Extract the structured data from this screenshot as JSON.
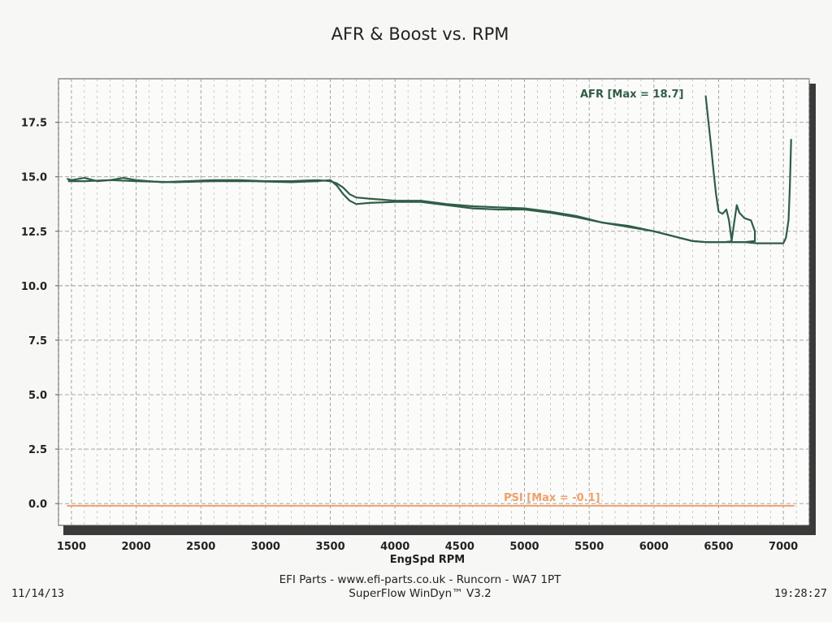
{
  "page": {
    "footer_line1": "EFI Parts - www.efi-parts.co.uk - Runcorn - WA7 1PT",
    "footer_line2": "SuperFlow WinDyn™ V3.2",
    "date": "11/14/13",
    "time": "19:28:27"
  },
  "colors": {
    "afr": "#2f5e45",
    "psi": "#f0a069",
    "grid": "#9a9a9a",
    "background": "#f7f7f5"
  },
  "chart_data": {
    "type": "line",
    "title": "AFR & Boost vs. RPM",
    "xlabel": "EngSpd RPM",
    "ylabel": "",
    "xlim": [
      1400,
      7200
    ],
    "ylim": [
      -1,
      19.5
    ],
    "x_ticks": [
      1500,
      2000,
      2500,
      3000,
      3500,
      4000,
      4500,
      5000,
      5500,
      6000,
      6500,
      7000
    ],
    "x_tick_labels": [
      "1500",
      "2000",
      "2500",
      "3000",
      "3500",
      "4000",
      "4500",
      "5000",
      "5500",
      "6000",
      "6500",
      "7000"
    ],
    "y_ticks": [
      0,
      2.5,
      5,
      7.5,
      10,
      12.5,
      15,
      17.5
    ],
    "y_tick_labels": [
      "0.0",
      "2.5",
      "5.0",
      "7.5",
      "10.0",
      "12.5",
      "15.0",
      "17.5"
    ],
    "grid": true,
    "series": [
      {
        "name": "AFR",
        "label": "AFR   [Max = 18.7]",
        "color": "#2f5e45",
        "x": [
          1470,
          1500,
          1600,
          1700,
          1800,
          1900,
          2000,
          2200,
          2400,
          2600,
          2800,
          3000,
          3200,
          3400,
          3500,
          3550,
          3600,
          3650,
          3700,
          3800,
          3900,
          4000,
          4200,
          4400,
          4600,
          4800,
          5000,
          5200,
          5400,
          5600,
          5800,
          6000,
          6200,
          6300,
          6400,
          6500,
          6600,
          6700,
          6800,
          6900,
          7000,
          7020,
          7040,
          7050,
          7060
        ],
        "y": [
          14.9,
          14.85,
          14.95,
          14.8,
          14.85,
          14.95,
          14.85,
          14.75,
          14.8,
          14.85,
          14.85,
          14.8,
          14.8,
          14.85,
          14.8,
          14.7,
          14.5,
          14.2,
          14.05,
          14.0,
          13.95,
          13.9,
          13.9,
          13.75,
          13.65,
          13.6,
          13.55,
          13.4,
          13.2,
          12.9,
          12.75,
          12.5,
          12.2,
          12.05,
          12.0,
          12.0,
          12.0,
          12.0,
          11.95,
          11.95,
          11.95,
          12.2,
          13.0,
          14.5,
          16.7
        ]
      },
      {
        "name": "AFR",
        "label": "",
        "color": "#2f5e45",
        "x": [
          1480,
          1600,
          1800,
          2000,
          2300,
          2600,
          2900,
          3200,
          3400,
          3500,
          3550,
          3600,
          3650,
          3700,
          3800,
          4000,
          4200,
          4400,
          4600,
          4800,
          5000,
          5200,
          5400,
          5600,
          5800,
          6000,
          6200,
          6300,
          6400,
          6500,
          6550,
          6600,
          6620,
          6640,
          6660,
          6700,
          6750,
          6780,
          6780,
          6700,
          6600
        ],
        "y": [
          14.8,
          14.8,
          14.85,
          14.8,
          14.75,
          14.8,
          14.8,
          14.75,
          14.8,
          14.85,
          14.6,
          14.2,
          13.9,
          13.75,
          13.8,
          13.85,
          13.85,
          13.7,
          13.55,
          13.5,
          13.5,
          13.35,
          13.15,
          12.9,
          12.7,
          12.5,
          12.2,
          12.05,
          12.0,
          12.0,
          12.0,
          12.05,
          12.9,
          13.7,
          13.35,
          13.1,
          13.0,
          12.5,
          12.05,
          12.0,
          12.0
        ]
      },
      {
        "name": "AFR",
        "label": "",
        "color": "#2f5e45",
        "x": [
          6400,
          6420,
          6440,
          6460,
          6480,
          6500,
          6530,
          6560,
          6580,
          6600,
          6590,
          6580
        ],
        "y": [
          18.7,
          17.6,
          16.5,
          15.3,
          14.2,
          13.4,
          13.3,
          13.5,
          13.0,
          12.1,
          12.0,
          12.0
        ]
      },
      {
        "name": "PSI",
        "label": "PSI   [Max = -0.1]",
        "color": "#f0a069",
        "x": [
          1470,
          2000,
          3000,
          4000,
          5000,
          6000,
          7080
        ],
        "y": [
          -0.1,
          -0.1,
          -0.1,
          -0.1,
          -0.1,
          -0.1,
          -0.1
        ]
      }
    ]
  }
}
